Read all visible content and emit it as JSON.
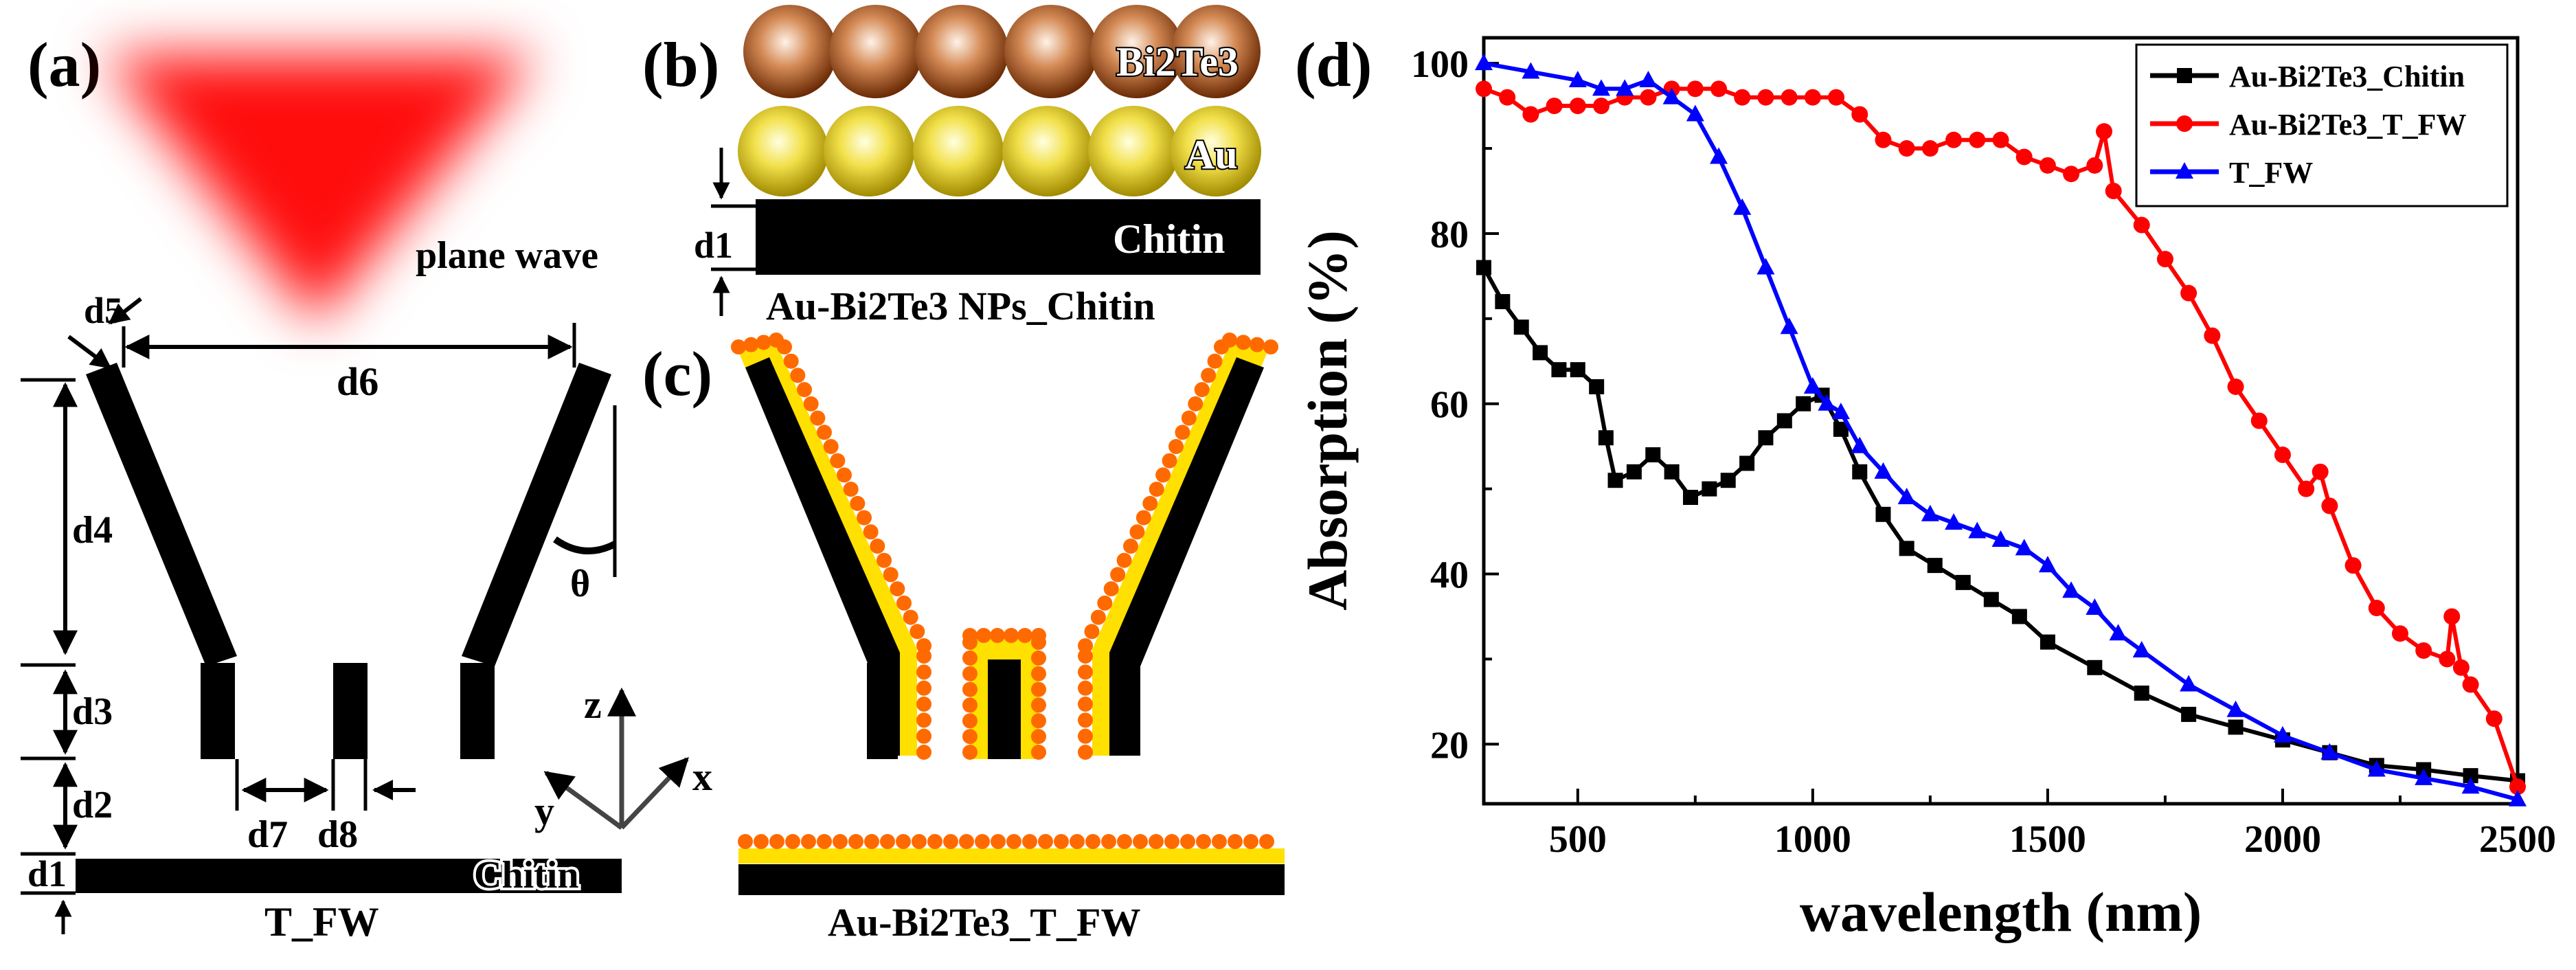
{
  "panel_a": {
    "label": "(a)",
    "wave_label": "plane wave",
    "dims": [
      "d1",
      "d2",
      "d3",
      "d4",
      "d5",
      "d6",
      "d7",
      "d8"
    ],
    "theta": "θ",
    "substrate_label": "Chitin",
    "caption": "T_FW",
    "axis": {
      "z": "z",
      "y": "y",
      "x": "x"
    }
  },
  "panel_b": {
    "label": "(b)",
    "top_layer": "Bi2Te3",
    "middle_layer": "Au",
    "substrate_label": "Chitin",
    "dim": "d1",
    "caption": "Au-Bi2Te3 NPs_Chitin"
  },
  "panel_c": {
    "label": "(c)",
    "caption": "Au-Bi2Te3_T_FW"
  },
  "colors": {
    "black_series": "#000000",
    "red_series": "#ff0000",
    "blue_series": "#0000ff",
    "gold": "#f5c400",
    "orange": "#ff6a00",
    "bi2te3": "#b5541f"
  },
  "chart_data": {
    "label": "(d)",
    "type": "line",
    "xlabel": "wavelength (nm)",
    "ylabel": "Absorption (%)",
    "xlim": [
      300,
      2500
    ],
    "ylim": [
      13,
      103
    ],
    "xticks": [
      500,
      1000,
      1500,
      2000,
      2500
    ],
    "yticks": [
      20,
      40,
      60,
      80,
      100
    ],
    "legend_position": "top-right",
    "series": [
      {
        "name": "Au-Bi2Te3_Chitin",
        "color": "#000000",
        "marker": "square",
        "x": [
          300,
          340,
          380,
          420,
          460,
          500,
          540,
          560,
          580,
          620,
          660,
          700,
          740,
          780,
          820,
          860,
          900,
          940,
          980,
          1020,
          1060,
          1100,
          1150,
          1200,
          1260,
          1320,
          1380,
          1440,
          1500,
          1600,
          1700,
          1800,
          1900,
          2000,
          2100,
          2200,
          2300,
          2400,
          2500
        ],
        "y": [
          76,
          72,
          69,
          66,
          64,
          64,
          62,
          56,
          51,
          52,
          54,
          52,
          49,
          50,
          51,
          53,
          56,
          58,
          60,
          61,
          57,
          52,
          47,
          43,
          41,
          39,
          37,
          35,
          32,
          29,
          26,
          23.5,
          22,
          20.5,
          19,
          17.5,
          17,
          16.3,
          15.7
        ]
      },
      {
        "name": "Au-Bi2Te3_T_FW",
        "color": "#ff0000",
        "marker": "circle",
        "x": [
          300,
          350,
          400,
          450,
          500,
          550,
          600,
          650,
          700,
          750,
          800,
          850,
          900,
          950,
          1000,
          1050,
          1100,
          1150,
          1200,
          1250,
          1300,
          1350,
          1400,
          1450,
          1500,
          1550,
          1600,
          1620,
          1640,
          1700,
          1750,
          1800,
          1850,
          1900,
          1950,
          2000,
          2050,
          2080,
          2100,
          2150,
          2200,
          2250,
          2300,
          2350,
          2360,
          2380,
          2400,
          2450,
          2500
        ],
        "y": [
          97,
          96,
          94,
          95,
          95,
          95,
          96,
          96,
          97,
          97,
          97,
          96,
          96,
          96,
          96,
          96,
          94,
          91,
          90,
          90,
          91,
          91,
          91,
          89,
          88,
          87,
          88,
          92,
          85,
          81,
          77,
          73,
          68,
          62,
          58,
          54,
          50,
          52,
          48,
          41,
          36,
          33,
          31,
          30,
          35,
          29,
          27,
          23,
          15
        ]
      },
      {
        "name": "T_FW",
        "color": "#0000ff",
        "marker": "triangle",
        "x": [
          300,
          400,
          500,
          550,
          600,
          650,
          700,
          750,
          800,
          850,
          900,
          950,
          1000,
          1030,
          1060,
          1100,
          1150,
          1200,
          1250,
          1300,
          1350,
          1400,
          1450,
          1500,
          1550,
          1600,
          1650,
          1700,
          1800,
          1900,
          2000,
          2100,
          2200,
          2300,
          2400,
          2500
        ],
        "y": [
          100,
          99,
          98,
          97,
          97,
          98,
          96,
          94,
          89,
          83,
          76,
          69,
          62,
          60,
          59,
          55,
          52,
          49,
          47,
          46,
          45,
          44,
          43,
          41,
          38,
          36,
          33,
          31,
          27,
          24,
          21,
          19,
          17,
          16,
          15,
          13.5
        ]
      }
    ]
  }
}
